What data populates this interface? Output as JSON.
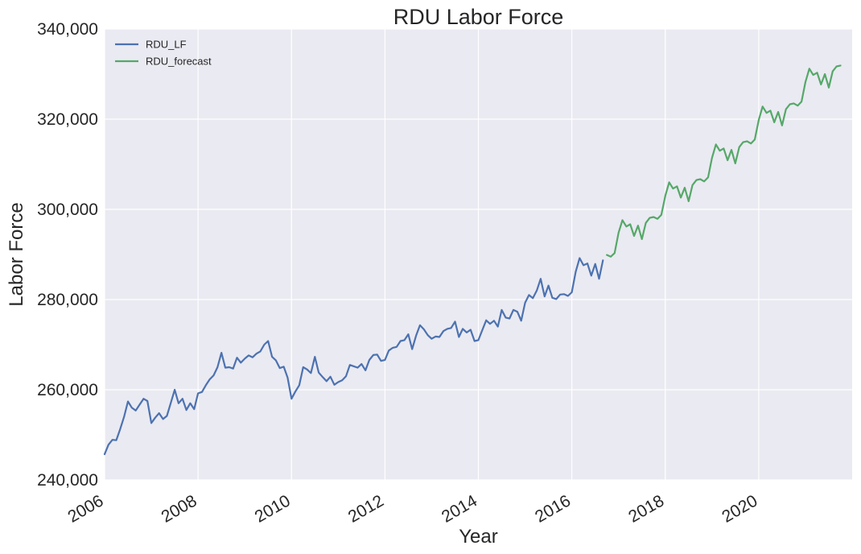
{
  "chart_data": {
    "type": "line",
    "title": "RDU Labor Force",
    "xlabel": "Year",
    "ylabel": "Labor Force",
    "xlim": [
      "2006-01",
      "2021-12"
    ],
    "ylim": [
      240000,
      340000
    ],
    "y_ticks": [
      "240,000",
      "260,000",
      "280,000",
      "300,000",
      "320,000",
      "340,000"
    ],
    "x_ticks": [
      "2006",
      "2008",
      "2010",
      "2012",
      "2014",
      "2016",
      "2018",
      "2020"
    ],
    "grid": true,
    "legend_position": "top-left",
    "background_color": "#eaeaf2",
    "grid_color": "#ffffff",
    "series": [
      {
        "name": "RDU_LF",
        "color": "#4c72b0",
        "points": [
          [
            "2006-01",
            245700
          ],
          [
            "2006-02",
            247800
          ],
          [
            "2006-03",
            248900
          ],
          [
            "2006-04",
            248800
          ],
          [
            "2006-05",
            251300
          ],
          [
            "2006-06",
            254000
          ],
          [
            "2006-07",
            257400
          ],
          [
            "2006-08",
            256000
          ],
          [
            "2006-09",
            255400
          ],
          [
            "2006-10",
            256700
          ],
          [
            "2006-11",
            258000
          ],
          [
            "2006-12",
            257500
          ],
          [
            "2007-01",
            252600
          ],
          [
            "2007-02",
            253800
          ],
          [
            "2007-03",
            254800
          ],
          [
            "2007-04",
            253500
          ],
          [
            "2007-05",
            254200
          ],
          [
            "2007-06",
            257100
          ],
          [
            "2007-07",
            260000
          ],
          [
            "2007-08",
            257000
          ],
          [
            "2007-09",
            258000
          ],
          [
            "2007-10",
            255500
          ],
          [
            "2007-11",
            257000
          ],
          [
            "2007-12",
            255700
          ],
          [
            "2008-01",
            259200
          ],
          [
            "2008-02",
            259500
          ],
          [
            "2008-03",
            261000
          ],
          [
            "2008-04",
            262300
          ],
          [
            "2008-05",
            263200
          ],
          [
            "2008-06",
            265000
          ],
          [
            "2008-07",
            268200
          ],
          [
            "2008-08",
            264900
          ],
          [
            "2008-09",
            265000
          ],
          [
            "2008-10",
            264700
          ],
          [
            "2008-11",
            267100
          ],
          [
            "2008-12",
            266000
          ],
          [
            "2009-01",
            266900
          ],
          [
            "2009-02",
            267600
          ],
          [
            "2009-03",
            267200
          ],
          [
            "2009-04",
            268000
          ],
          [
            "2009-05",
            268500
          ],
          [
            "2009-06",
            270000
          ],
          [
            "2009-07",
            270800
          ],
          [
            "2009-08",
            267300
          ],
          [
            "2009-09",
            266500
          ],
          [
            "2009-10",
            264800
          ],
          [
            "2009-11",
            265100
          ],
          [
            "2009-12",
            262700
          ],
          [
            "2010-01",
            258000
          ],
          [
            "2010-02",
            259600
          ],
          [
            "2010-03",
            261000
          ],
          [
            "2010-04",
            265000
          ],
          [
            "2010-05",
            264500
          ],
          [
            "2010-06",
            263700
          ],
          [
            "2010-07",
            267300
          ],
          [
            "2010-08",
            263800
          ],
          [
            "2010-09",
            262800
          ],
          [
            "2010-10",
            261900
          ],
          [
            "2010-11",
            262900
          ],
          [
            "2010-12",
            261100
          ],
          [
            "2011-01",
            261700
          ],
          [
            "2011-02",
            262100
          ],
          [
            "2011-03",
            263000
          ],
          [
            "2011-04",
            265500
          ],
          [
            "2011-05",
            265200
          ],
          [
            "2011-06",
            264900
          ],
          [
            "2011-07",
            265700
          ],
          [
            "2011-08",
            264300
          ],
          [
            "2011-09",
            266600
          ],
          [
            "2011-10",
            267700
          ],
          [
            "2011-11",
            267800
          ],
          [
            "2011-12",
            266400
          ],
          [
            "2012-01",
            266600
          ],
          [
            "2012-02",
            268700
          ],
          [
            "2012-03",
            269300
          ],
          [
            "2012-04",
            269500
          ],
          [
            "2012-05",
            270800
          ],
          [
            "2012-06",
            271000
          ],
          [
            "2012-07",
            272300
          ],
          [
            "2012-08",
            269000
          ],
          [
            "2012-09",
            272000
          ],
          [
            "2012-10",
            274300
          ],
          [
            "2012-11",
            273400
          ],
          [
            "2012-12",
            272100
          ],
          [
            "2013-01",
            271300
          ],
          [
            "2013-02",
            271800
          ],
          [
            "2013-03",
            271700
          ],
          [
            "2013-04",
            273000
          ],
          [
            "2013-05",
            273500
          ],
          [
            "2013-06",
            273700
          ],
          [
            "2013-07",
            275100
          ],
          [
            "2013-08",
            271700
          ],
          [
            "2013-09",
            273500
          ],
          [
            "2013-10",
            272700
          ],
          [
            "2013-11",
            273300
          ],
          [
            "2013-12",
            270800
          ],
          [
            "2014-01",
            271000
          ],
          [
            "2014-02",
            273200
          ],
          [
            "2014-03",
            275400
          ],
          [
            "2014-04",
            274600
          ],
          [
            "2014-05",
            275300
          ],
          [
            "2014-06",
            274000
          ],
          [
            "2014-07",
            277700
          ],
          [
            "2014-08",
            276000
          ],
          [
            "2014-09",
            275800
          ],
          [
            "2014-10",
            277700
          ],
          [
            "2014-11",
            277300
          ],
          [
            "2014-12",
            275300
          ],
          [
            "2015-01",
            279300
          ],
          [
            "2015-02",
            281000
          ],
          [
            "2015-03",
            280300
          ],
          [
            "2015-04",
            282000
          ],
          [
            "2015-05",
            284600
          ],
          [
            "2015-06",
            280700
          ],
          [
            "2015-07",
            283100
          ],
          [
            "2015-08",
            280400
          ],
          [
            "2015-09",
            280100
          ],
          [
            "2015-10",
            281100
          ],
          [
            "2015-11",
            281200
          ],
          [
            "2015-12",
            280800
          ],
          [
            "2016-01",
            281600
          ],
          [
            "2016-02",
            286200
          ],
          [
            "2016-03",
            289200
          ],
          [
            "2016-04",
            287600
          ],
          [
            "2016-05",
            288000
          ],
          [
            "2016-06",
            285300
          ],
          [
            "2016-07",
            287900
          ],
          [
            "2016-08",
            284600
          ],
          [
            "2016-09",
            288700
          ]
        ]
      },
      {
        "name": "RDU_forecast",
        "color": "#55a868",
        "points": [
          [
            "2016-10",
            289900
          ],
          [
            "2016-11",
            289500
          ],
          [
            "2016-12",
            290300
          ],
          [
            "2017-01",
            294800
          ],
          [
            "2017-02",
            297600
          ],
          [
            "2017-03",
            296200
          ],
          [
            "2017-04",
            296700
          ],
          [
            "2017-05",
            294100
          ],
          [
            "2017-06",
            296400
          ],
          [
            "2017-07",
            293400
          ],
          [
            "2017-08",
            297000
          ],
          [
            "2017-09",
            298100
          ],
          [
            "2017-10",
            298300
          ],
          [
            "2017-11",
            297900
          ],
          [
            "2017-12",
            298800
          ],
          [
            "2018-01",
            303000
          ],
          [
            "2018-02",
            306000
          ],
          [
            "2018-03",
            304600
          ],
          [
            "2018-04",
            305100
          ],
          [
            "2018-05",
            302600
          ],
          [
            "2018-06",
            304800
          ],
          [
            "2018-07",
            301800
          ],
          [
            "2018-08",
            305400
          ],
          [
            "2018-09",
            306500
          ],
          [
            "2018-10",
            306700
          ],
          [
            "2018-11",
            306200
          ],
          [
            "2018-12",
            307100
          ],
          [
            "2019-01",
            311400
          ],
          [
            "2019-02",
            314400
          ],
          [
            "2019-03",
            313000
          ],
          [
            "2019-04",
            313500
          ],
          [
            "2019-05",
            310900
          ],
          [
            "2019-06",
            313200
          ],
          [
            "2019-07",
            310200
          ],
          [
            "2019-08",
            313800
          ],
          [
            "2019-09",
            314900
          ],
          [
            "2019-10",
            315100
          ],
          [
            "2019-11",
            314600
          ],
          [
            "2019-12",
            315500
          ],
          [
            "2020-01",
            319800
          ],
          [
            "2020-02",
            322800
          ],
          [
            "2020-03",
            321400
          ],
          [
            "2020-04",
            321900
          ],
          [
            "2020-05",
            319300
          ],
          [
            "2020-06",
            321600
          ],
          [
            "2020-07",
            318600
          ],
          [
            "2020-08",
            322200
          ],
          [
            "2020-09",
            323300
          ],
          [
            "2020-10",
            323500
          ],
          [
            "2020-11",
            323000
          ],
          [
            "2020-12",
            323900
          ],
          [
            "2021-01",
            328200
          ],
          [
            "2021-02",
            331200
          ],
          [
            "2021-03",
            329800
          ],
          [
            "2021-04",
            330300
          ],
          [
            "2021-05",
            327700
          ],
          [
            "2021-06",
            330000
          ],
          [
            "2021-07",
            327000
          ],
          [
            "2021-08",
            330600
          ],
          [
            "2021-09",
            331700
          ],
          [
            "2021-10",
            331900
          ]
        ]
      }
    ]
  }
}
